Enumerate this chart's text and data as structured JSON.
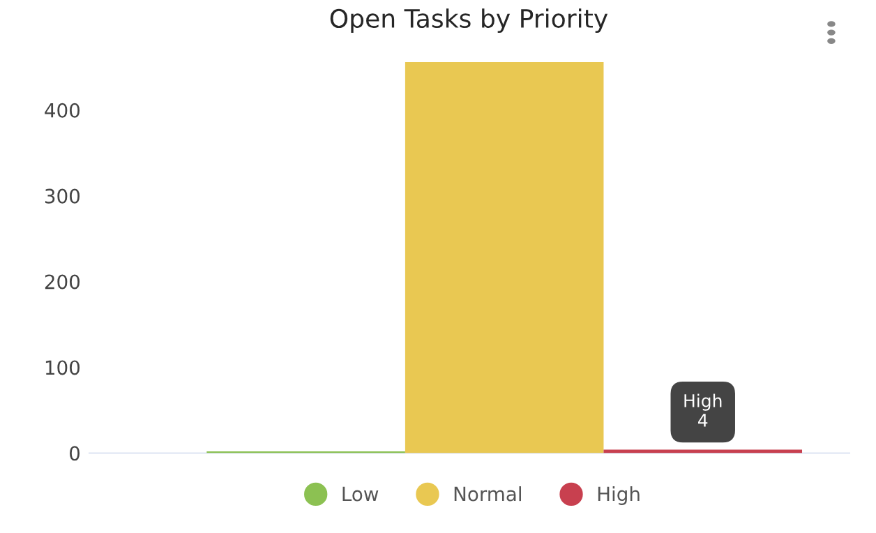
{
  "chart_data": {
    "type": "bar",
    "title": "Open Tasks by Priority",
    "categories": [
      null
    ],
    "series": [
      {
        "name": "Low",
        "color": "#8cc152",
        "values": [
          2
        ]
      },
      {
        "name": "Normal",
        "color": "#e9c852",
        "values": [
          456
        ]
      },
      {
        "name": "High",
        "color": "#c8404f",
        "values": [
          4
        ]
      }
    ],
    "ylim": [
      0,
      460
    ],
    "yticks": [
      0,
      100,
      200,
      300,
      400
    ],
    "grid": false,
    "legend": "bottom",
    "annotations": [
      {
        "text": "High\n4",
        "y": 4
      }
    ]
  }
}
